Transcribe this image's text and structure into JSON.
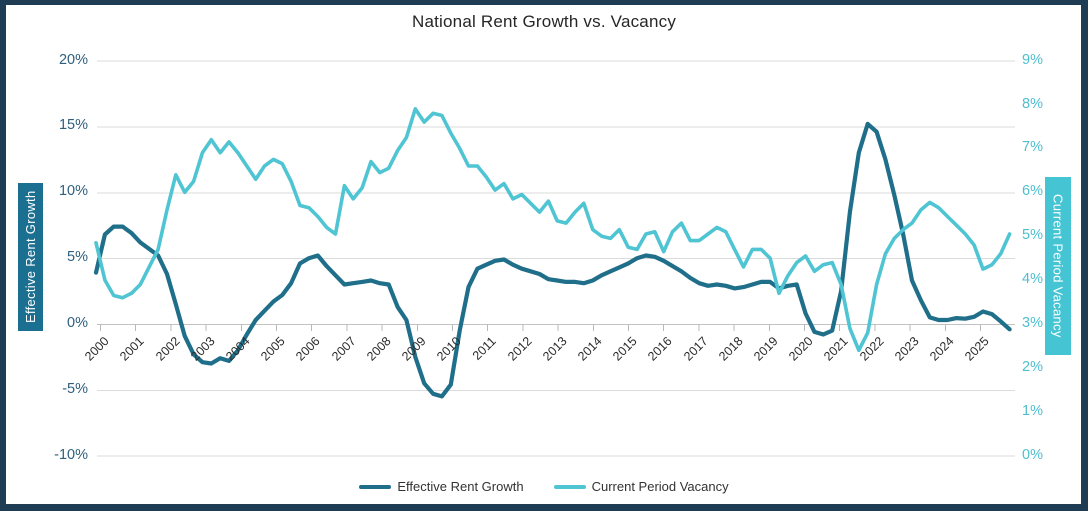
{
  "title": "National Rent Growth vs. Vacancy",
  "colors": {
    "frame": "#1f3c55",
    "background": "#ffffff",
    "gridline": "#dbdbdb",
    "zero_axis_line": "#c2c2c2",
    "tick_mark": "#b9b9b9",
    "left_tick_text": "#2e5f7e",
    "right_tick_text": "#4fbfd0",
    "x_tick_text": "#2b2b2b",
    "title_text": "#262626",
    "left_axis_box_bg": "#1b7092",
    "right_axis_box_bg": "#45c4d3",
    "rent_growth_line": "#1f6e8a",
    "vacancy_line": "#4fc4d2"
  },
  "y_axis_left": {
    "title": "Effective Rent Growth",
    "tick_labels": [
      "20%",
      "15%",
      "10%",
      "5%",
      "0%",
      "-5%",
      "-10%"
    ],
    "tick_values": [
      20,
      15,
      10,
      5,
      0,
      -5,
      -10
    ],
    "min": -10,
    "max": 20
  },
  "y_axis_right": {
    "title": "Current Period Vacancy",
    "tick_labels": [
      "9%",
      "8%",
      "7%",
      "6%",
      "5%",
      "4%",
      "3%",
      "2%",
      "1%",
      "0%"
    ],
    "tick_values": [
      9,
      8,
      7,
      6,
      5,
      4,
      3,
      2,
      1,
      0
    ],
    "min": 0,
    "max": 9
  },
  "x_axis": {
    "tick_labels": [
      "2000",
      "2001",
      "2002",
      "2003",
      "2004",
      "2005",
      "2006",
      "2007",
      "2008",
      "2009",
      "2010",
      "2011",
      "2012",
      "2013",
      "2014",
      "2015",
      "2016",
      "2017",
      "2018",
      "2019",
      "2020",
      "2021",
      "2022",
      "2023",
      "2024",
      "2025"
    ]
  },
  "legend": {
    "items": [
      {
        "label": "Effective Rent Growth",
        "color": "#1f6e8a"
      },
      {
        "label": "Current Period Vacancy",
        "color": "#4fc4d2"
      }
    ]
  },
  "chart_data": {
    "type": "line",
    "title": "National Rent Growth vs. Vacancy",
    "x_unit": "quarterly, decimal years",
    "x_start": 2000.0,
    "x_step": 0.25,
    "grid": "horizontal gridlines only",
    "legend_position": "bottom center",
    "left_axis_label": "Effective Rent Growth",
    "right_axis_label": "Current Period Vacancy",
    "left_axis_range": [
      -10,
      20
    ],
    "right_axis_range": [
      0,
      9
    ],
    "series": [
      {
        "name": "Effective Rent Growth",
        "axis": "left",
        "unit": "%",
        "color": "#1f6e8a",
        "values": [
          3.9,
          6.8,
          7.4,
          7.4,
          6.9,
          6.2,
          5.7,
          5.2,
          3.8,
          1.5,
          -0.9,
          -2.3,
          -2.9,
          -3.0,
          -2.6,
          -2.8,
          -2.0,
          -0.8,
          0.3,
          1.0,
          1.7,
          2.2,
          3.1,
          4.6,
          5.0,
          5.2,
          4.4,
          3.7,
          3.0,
          3.1,
          3.2,
          3.3,
          3.1,
          3.0,
          1.3,
          0.3,
          -2.5,
          -4.5,
          -5.3,
          -5.5,
          -4.6,
          -0.5,
          2.8,
          4.2,
          4.5,
          4.8,
          4.9,
          4.5,
          4.2,
          4.0,
          3.8,
          3.4,
          3.3,
          3.2,
          3.2,
          3.1,
          3.3,
          3.7,
          4.0,
          4.3,
          4.6,
          5.0,
          5.2,
          5.1,
          4.8,
          4.4,
          4.0,
          3.5,
          3.1,
          2.9,
          3.0,
          2.9,
          2.7,
          2.8,
          3.0,
          3.2,
          3.2,
          2.7,
          2.9,
          3.0,
          0.8,
          -0.6,
          -0.8,
          -0.5,
          2.5,
          8.5,
          13.0,
          15.2,
          14.6,
          12.5,
          9.8,
          6.8,
          3.3,
          1.8,
          0.5,
          0.3,
          0.3,
          0.45,
          0.4,
          0.55,
          0.95,
          0.75,
          0.2,
          -0.4
        ]
      },
      {
        "name": "Current Period Vacancy",
        "axis": "right",
        "unit": "%",
        "color": "#4fc4d2",
        "values": [
          4.85,
          4.0,
          3.65,
          3.6,
          3.7,
          3.9,
          4.3,
          4.7,
          5.6,
          6.4,
          6.0,
          6.25,
          6.9,
          7.2,
          6.9,
          7.15,
          6.9,
          6.6,
          6.3,
          6.6,
          6.75,
          6.65,
          6.25,
          5.7,
          5.65,
          5.45,
          5.2,
          5.05,
          6.15,
          5.85,
          6.1,
          6.7,
          6.45,
          6.55,
          6.95,
          7.25,
          7.9,
          7.6,
          7.8,
          7.75,
          7.35,
          7.0,
          6.6,
          6.6,
          6.35,
          6.05,
          6.2,
          5.85,
          5.95,
          5.75,
          5.55,
          5.8,
          5.35,
          5.3,
          5.55,
          5.75,
          5.15,
          5.0,
          4.95,
          5.15,
          4.75,
          4.7,
          5.05,
          5.1,
          4.65,
          5.1,
          5.3,
          4.9,
          4.9,
          5.05,
          5.2,
          5.1,
          4.7,
          4.3,
          4.7,
          4.7,
          4.5,
          3.7,
          4.1,
          4.4,
          4.55,
          4.2,
          4.35,
          4.4,
          3.9,
          2.9,
          2.4,
          2.8,
          3.9,
          4.6,
          4.95,
          5.15,
          5.3,
          5.6,
          5.77,
          5.65,
          5.45,
          5.25,
          5.05,
          4.8,
          4.25,
          4.35,
          4.6,
          5.05
        ]
      }
    ]
  }
}
